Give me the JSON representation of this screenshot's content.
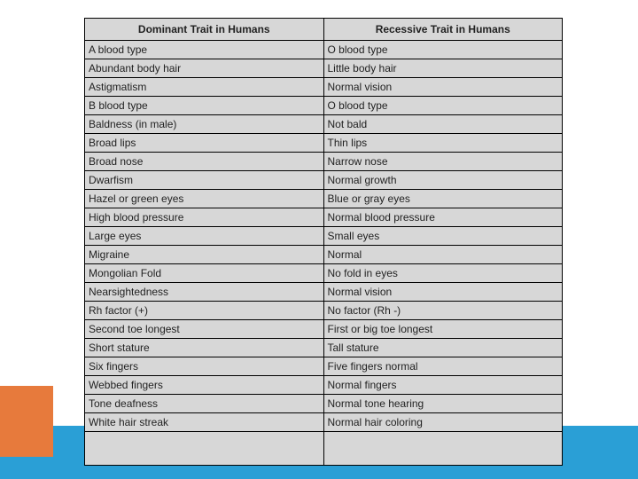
{
  "table": {
    "headers": [
      "Dominant Trait in Humans",
      "Recessive Trait in Humans"
    ],
    "rows": [
      [
        "A blood type",
        "O blood type"
      ],
      [
        "Abundant body hair",
        "Little body hair"
      ],
      [
        "Astigmatism",
        "Normal vision"
      ],
      [
        "B blood type",
        "O blood type"
      ],
      [
        "Baldness (in male)",
        "Not bald"
      ],
      [
        "Broad lips",
        "Thin lips"
      ],
      [
        "Broad nose",
        "Narrow nose"
      ],
      [
        "Dwarfism",
        "Normal growth"
      ],
      [
        "Hazel or green eyes",
        "Blue or gray eyes"
      ],
      [
        "High blood pressure",
        "Normal blood pressure"
      ],
      [
        "Large eyes",
        "Small eyes"
      ],
      [
        "Migraine",
        "Normal"
      ],
      [
        "Mongolian Fold",
        "No fold in eyes"
      ],
      [
        "Nearsightedness",
        "Normal vision"
      ],
      [
        "Rh factor (+)",
        "No factor (Rh -)"
      ],
      [
        "Second toe longest",
        "First or big toe longest"
      ],
      [
        "Short stature",
        "Tall stature"
      ],
      [
        "Six fingers",
        "Five fingers normal"
      ],
      [
        "Webbed fingers",
        "Normal fingers"
      ],
      [
        "Tone deafness",
        "Normal tone hearing"
      ],
      [
        "White hair streak",
        "Normal hair coloring"
      ]
    ],
    "cell_bg": "#d7d7d7",
    "border_color": "#000000",
    "font_size": 12
  },
  "decor": {
    "orange": "#e77a3c",
    "blue": "#2a9fd6",
    "page_bg": "#ffffff"
  }
}
